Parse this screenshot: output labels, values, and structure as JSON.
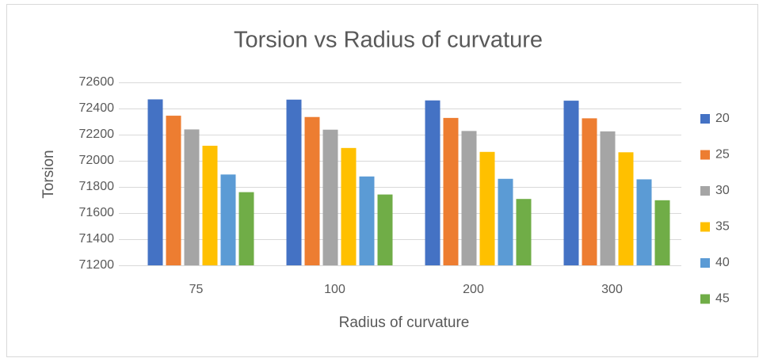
{
  "chart_data": {
    "type": "bar",
    "title": "Torsion vs Radius of curvature",
    "x_label": "Radius of curvature",
    "y_label": "Torsion",
    "categories": [
      "75",
      "100",
      "200",
      "300"
    ],
    "series": [
      {
        "name": "20",
        "color": "#4472c4",
        "values": [
          72470,
          72468,
          72462,
          72460
        ]
      },
      {
        "name": "25",
        "color": "#ed7d31",
        "values": [
          72345,
          72335,
          72328,
          72325
        ]
      },
      {
        "name": "30",
        "color": "#a5a5a5",
        "values": [
          72240,
          72238,
          72228,
          72225
        ]
      },
      {
        "name": "35",
        "color": "#ffc000",
        "values": [
          72115,
          72098,
          72068,
          72065
        ]
      },
      {
        "name": "40",
        "color": "#5b9bd5",
        "values": [
          71895,
          71880,
          71862,
          71858
        ]
      },
      {
        "name": "45",
        "color": "#70ad47",
        "values": [
          71760,
          71742,
          71708,
          71698
        ]
      }
    ],
    "ylim": [
      71200,
      72600
    ],
    "yticks": [
      71200,
      71400,
      71600,
      71800,
      72000,
      72200,
      72400,
      72600
    ],
    "grid": true,
    "legend": "right"
  }
}
